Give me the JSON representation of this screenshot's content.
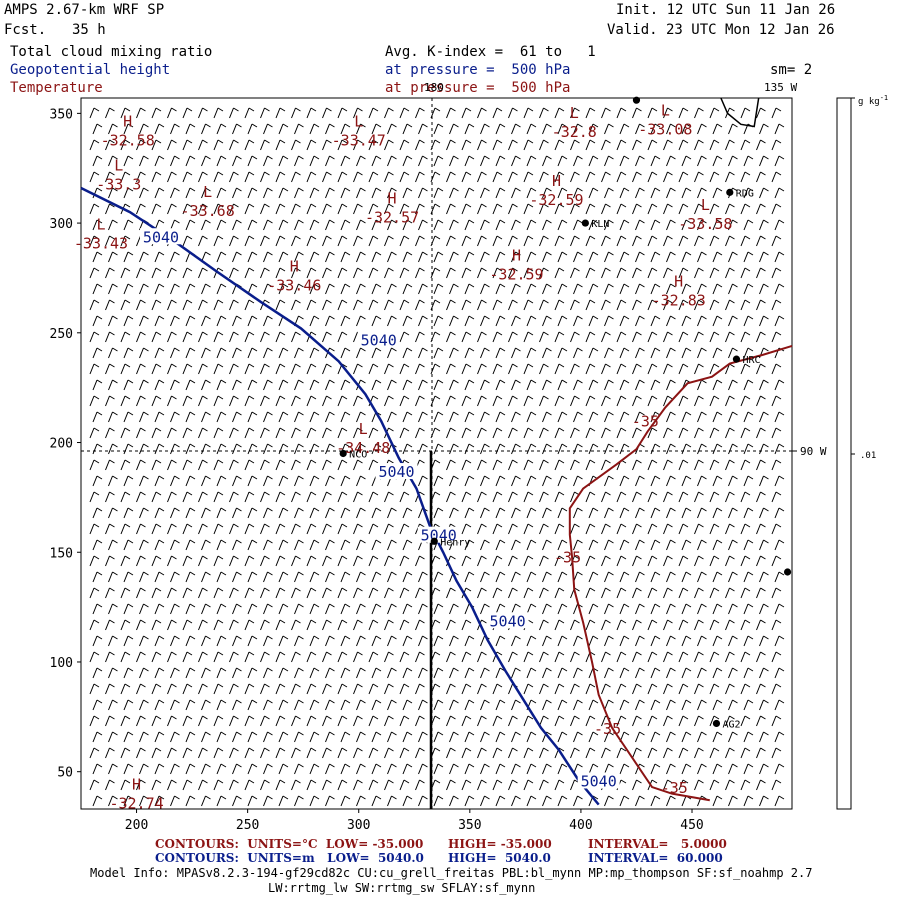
{
  "header": {
    "model": "AMPS 2.67-km WRF SP",
    "fcst_label": "Fcst.",
    "fcst_value": "35 h",
    "init": "Init. 12 UTC Sun 11 Jan 26",
    "valid": "Valid. 23 UTC Mon 12 Jan 26",
    "field1": "Total cloud mixing ratio",
    "field2": "Geopotential height",
    "field3": "Temperature",
    "avg": "Avg. K-index =  61 to   1",
    "press1": "at pressure =  500 hPa",
    "press2": "at pressure =  500 hPa",
    "sm": "sm= 2"
  },
  "colors": {
    "height": "#0a1e8c",
    "temperature": "#8c1414",
    "coast": "#000000"
  },
  "chart_data": {
    "type": "contour-map",
    "xlim": [
      175,
      495
    ],
    "ylim": [
      33,
      357
    ],
    "xticks": [
      200,
      250,
      300,
      350,
      400,
      450
    ],
    "yticks": [
      50,
      100,
      150,
      200,
      250,
      300,
      350
    ],
    "meridian_labels": [
      "180",
      "135 W",
      "90 W"
    ],
    "colorbar": {
      "unit": "g kg-1",
      "tick": ".01"
    },
    "stations": [
      {
        "name": "NCO",
        "x": 293,
        "y": 195
      },
      {
        "name": "Henry",
        "x": 334,
        "y": 155
      },
      {
        "name": "KLN",
        "x": 402,
        "y": 300
      },
      {
        "name": "RDG",
        "x": 467,
        "y": 314
      },
      {
        "name": "HRC",
        "x": 470,
        "y": 238
      },
      {
        "name": "AG2",
        "x": 461,
        "y": 72
      },
      {
        "name": "",
        "x": 425,
        "y": 356
      },
      {
        "name": "",
        "x": 493,
        "y": 141
      }
    ],
    "highs_lows": [
      {
        "type": "H",
        "value": "-32.58",
        "x": 196,
        "y": 344
      },
      {
        "type": "L",
        "value": "-33.47",
        "x": 300,
        "y": 344
      },
      {
        "type": "L",
        "value": "-32.8",
        "x": 397,
        "y": 348
      },
      {
        "type": "L",
        "value": "-33.08",
        "x": 438,
        "y": 349
      },
      {
        "type": "L",
        "value": "-33.3",
        "x": 192,
        "y": 324
      },
      {
        "type": "H",
        "value": "-32.59",
        "x": 389,
        "y": 317
      },
      {
        "type": "L",
        "value": "-33.68",
        "x": 232,
        "y": 312
      },
      {
        "type": "H",
        "value": "-32.57",
        "x": 315,
        "y": 309
      },
      {
        "type": "L",
        "value": "-33.58",
        "x": 456,
        "y": 306
      },
      {
        "type": "L",
        "value": "-33.43",
        "x": 184,
        "y": 297
      },
      {
        "type": "H",
        "value": "-32.59",
        "x": 371,
        "y": 283
      },
      {
        "type": "H",
        "value": "-33.46",
        "x": 271,
        "y": 278
      },
      {
        "type": "H",
        "value": "-32.83",
        "x": 444,
        "y": 271
      },
      {
        "type": "L",
        "value": "-34.48",
        "x": 302,
        "y": 204
      },
      {
        "type": "H",
        "value": "-32.74",
        "x": 200,
        "y": 42
      }
    ],
    "contours_height": {
      "level_label": "5040",
      "points": [
        [
          175,
          316
        ],
        [
          197,
          305
        ],
        [
          218,
          291
        ],
        [
          236,
          278
        ],
        [
          256,
          264
        ],
        [
          274,
          252
        ],
        [
          291,
          237
        ],
        [
          303,
          222
        ],
        [
          310,
          210
        ],
        [
          318,
          193
        ],
        [
          326,
          179
        ],
        [
          332,
          162
        ],
        [
          338,
          150
        ],
        [
          344,
          137
        ],
        [
          351,
          125
        ],
        [
          358,
          110
        ],
        [
          366,
          96
        ],
        [
          374,
          83
        ],
        [
          382,
          70
        ],
        [
          390,
          60
        ],
        [
          399,
          46
        ],
        [
          408,
          35
        ]
      ],
      "labels": [
        [
          211,
          294
        ],
        [
          309,
          247
        ],
        [
          317,
          187
        ],
        [
          336,
          158
        ],
        [
          367,
          119
        ],
        [
          408,
          46
        ]
      ]
    },
    "contours_temperature": {
      "level_label": "-35",
      "points": [
        [
          495,
          244
        ],
        [
          482,
          240
        ],
        [
          467,
          236
        ],
        [
          459,
          230
        ],
        [
          448,
          227
        ],
        [
          438,
          216
        ],
        [
          430,
          205
        ],
        [
          425,
          197
        ],
        [
          416,
          190
        ],
        [
          401,
          179
        ],
        [
          395,
          170
        ],
        [
          395,
          158
        ],
        [
          396,
          148
        ],
        [
          397,
          133
        ],
        [
          401,
          118
        ],
        [
          405,
          100
        ],
        [
          408,
          85
        ],
        [
          414,
          70
        ],
        [
          424,
          55
        ],
        [
          432,
          43
        ],
        [
          441,
          40
        ],
        [
          458,
          37
        ]
      ],
      "labels": [
        [
          429,
          210
        ],
        [
          394,
          148
        ],
        [
          412,
          70
        ],
        [
          442,
          43
        ]
      ]
    },
    "coast_segment": {
      "points": [
        [
          463,
          357
        ],
        [
          466,
          350
        ],
        [
          472,
          345
        ],
        [
          478,
          344
        ],
        [
          480,
          357
        ]
      ]
    }
  },
  "footer": {
    "line1_a": "CONTOURS:  UNITS=°C  LOW= -35.000",
    "line1_b": "HIGH= -35.000",
    "line1_c": "INTERVAL=   5.0000",
    "line2_a": "CONTOURS:  UNITS=m   LOW=  5040.0",
    "line2_b": "HIGH=  5040.0",
    "line2_c": "INTERVAL=  60.000",
    "info1": "Model Info: MPASv8.2.3-194-gf29cd82c CU:cu_grell_freitas PBL:bl_mynn MP:mp_thompson SF:sf_noahmp 2.7",
    "info2": "LW:rrtmg_lw SW:rrtmg_sw SFLAY:sf_mynn"
  }
}
